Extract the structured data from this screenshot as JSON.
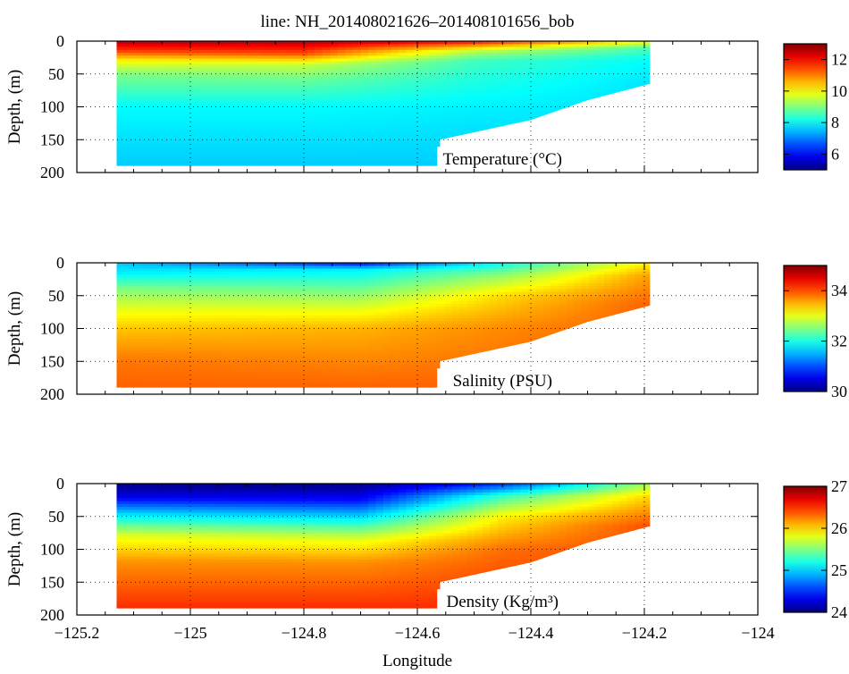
{
  "figure": {
    "title": "line: NH_201408021626–201408101656_bob",
    "xlabel": "Longitude"
  },
  "chart_data": [
    {
      "type": "heatmap",
      "panel": "temperature",
      "ylabel": "Depth, (m)",
      "annotation": "Temperature (°C)",
      "xlim": [
        -125.2,
        -124.0
      ],
      "ylim": [
        0,
        200
      ],
      "y_reversed": true,
      "xticks": [
        -125.2,
        -125.0,
        -124.8,
        -124.6,
        -124.4,
        -124.2,
        -124.0
      ],
      "xtick_labels": [
        "−125.2",
        "−125",
        "−124.8",
        "−124.6",
        "−124.4",
        "−124.2",
        "−124"
      ],
      "yticks": [
        0,
        50,
        100,
        150,
        200
      ],
      "grid": "dotted",
      "colormap": "jet",
      "colorbar": {
        "range": [
          5.0,
          13.0
        ],
        "ticks": [
          6,
          8,
          10,
          12
        ]
      },
      "section_bottom": [
        {
          "lon": -125.13,
          "depth": 190
        },
        {
          "lon": -124.56,
          "depth": 190
        },
        {
          "lon": -124.56,
          "depth": 150
        },
        {
          "lon": -124.4,
          "depth": 120
        },
        {
          "lon": -124.3,
          "depth": 90
        },
        {
          "lon": -124.19,
          "depth": 65
        }
      ],
      "profile": [
        {
          "lon": -125.13,
          "levels": [
            {
              "depth": 0,
              "value": 12.6
            },
            {
              "depth": 15,
              "value": 11.5
            },
            {
              "depth": 30,
              "value": 10.0
            },
            {
              "depth": 50,
              "value": 9.0
            },
            {
              "depth": 100,
              "value": 8.0
            },
            {
              "depth": 190,
              "value": 7.6
            }
          ]
        },
        {
          "lon": -124.8,
          "levels": [
            {
              "depth": 0,
              "value": 12.6
            },
            {
              "depth": 20,
              "value": 11.3
            },
            {
              "depth": 35,
              "value": 9.6
            },
            {
              "depth": 60,
              "value": 8.8
            },
            {
              "depth": 100,
              "value": 8.0
            },
            {
              "depth": 190,
              "value": 7.6
            }
          ]
        },
        {
          "lon": -124.5,
          "levels": [
            {
              "depth": 0,
              "value": 12.0
            },
            {
              "depth": 15,
              "value": 9.5
            },
            {
              "depth": 30,
              "value": 8.5
            },
            {
              "depth": 100,
              "value": 7.9
            },
            {
              "depth": 190,
              "value": 7.6
            }
          ]
        },
        {
          "lon": -124.19,
          "levels": [
            {
              "depth": 0,
              "value": 10.0
            },
            {
              "depth": 10,
              "value": 8.6
            },
            {
              "depth": 30,
              "value": 8.0
            },
            {
              "depth": 65,
              "value": 7.8
            }
          ]
        }
      ]
    },
    {
      "type": "heatmap",
      "panel": "salinity",
      "ylabel": "Depth, (m)",
      "annotation": "Salinity (PSU)",
      "xlim": [
        -125.2,
        -124.0
      ],
      "ylim": [
        0,
        200
      ],
      "y_reversed": true,
      "xticks": [
        -125.2,
        -125.0,
        -124.8,
        -124.6,
        -124.4,
        -124.2,
        -124.0
      ],
      "xtick_labels": [
        "−125.2",
        "−125",
        "−124.8",
        "−124.6",
        "−124.4",
        "−124.2",
        "−124"
      ],
      "yticks": [
        0,
        50,
        100,
        150,
        200
      ],
      "grid": "dotted",
      "colormap": "jet",
      "colorbar": {
        "range": [
          30.0,
          35.0
        ],
        "ticks": [
          30,
          32,
          34
        ]
      },
      "section_bottom": [
        {
          "lon": -125.13,
          "depth": 190
        },
        {
          "lon": -124.56,
          "depth": 190
        },
        {
          "lon": -124.56,
          "depth": 150
        },
        {
          "lon": -124.4,
          "depth": 120
        },
        {
          "lon": -124.3,
          "depth": 90
        },
        {
          "lon": -124.19,
          "depth": 65
        }
      ],
      "profile": [
        {
          "lon": -125.13,
          "levels": [
            {
              "depth": 0,
              "value": 31.6
            },
            {
              "depth": 15,
              "value": 31.8
            },
            {
              "depth": 40,
              "value": 32.5
            },
            {
              "depth": 70,
              "value": 33.0
            },
            {
              "depth": 100,
              "value": 33.4
            },
            {
              "depth": 150,
              "value": 33.8
            },
            {
              "depth": 190,
              "value": 33.9
            }
          ]
        },
        {
          "lon": -124.7,
          "levels": [
            {
              "depth": 0,
              "value": 30.6
            },
            {
              "depth": 10,
              "value": 31.8
            },
            {
              "depth": 40,
              "value": 32.4
            },
            {
              "depth": 70,
              "value": 33.0
            },
            {
              "depth": 100,
              "value": 33.5
            },
            {
              "depth": 190,
              "value": 33.9
            }
          ]
        },
        {
          "lon": -124.45,
          "levels": [
            {
              "depth": 0,
              "value": 31.9
            },
            {
              "depth": 20,
              "value": 32.6
            },
            {
              "depth": 50,
              "value": 33.3
            },
            {
              "depth": 100,
              "value": 33.7
            },
            {
              "depth": 190,
              "value": 33.9
            }
          ]
        },
        {
          "lon": -124.19,
          "levels": [
            {
              "depth": 0,
              "value": 33.2
            },
            {
              "depth": 20,
              "value": 33.6
            },
            {
              "depth": 65,
              "value": 33.9
            }
          ]
        }
      ]
    },
    {
      "type": "heatmap",
      "panel": "density",
      "ylabel": "Depth, (m)",
      "annotation": "Density (Kg/m³)",
      "xlim": [
        -125.2,
        -124.0
      ],
      "ylim": [
        0,
        200
      ],
      "y_reversed": true,
      "xticks": [
        -125.2,
        -125.0,
        -124.8,
        -124.6,
        -124.4,
        -124.2,
        -124.0
      ],
      "xtick_labels": [
        "−125.2",
        "−125",
        "−124.8",
        "−124.6",
        "−124.4",
        "−124.2",
        "−124"
      ],
      "yticks": [
        0,
        50,
        100,
        150,
        200
      ],
      "grid": "dotted",
      "colormap": "jet",
      "colorbar": {
        "range": [
          24.0,
          27.0
        ],
        "ticks": [
          24,
          25,
          26,
          27
        ]
      },
      "section_bottom": [
        {
          "lon": -125.13,
          "depth": 190
        },
        {
          "lon": -124.56,
          "depth": 190
        },
        {
          "lon": -124.56,
          "depth": 150
        },
        {
          "lon": -124.4,
          "depth": 120
        },
        {
          "lon": -124.3,
          "depth": 90
        },
        {
          "lon": -124.19,
          "depth": 65
        }
      ],
      "profile": [
        {
          "lon": -125.13,
          "levels": [
            {
              "depth": 0,
              "value": 24.0
            },
            {
              "depth": 20,
              "value": 24.3
            },
            {
              "depth": 45,
              "value": 25.0
            },
            {
              "depth": 80,
              "value": 25.8
            },
            {
              "depth": 120,
              "value": 26.2
            },
            {
              "depth": 190,
              "value": 26.5
            }
          ]
        },
        {
          "lon": -124.7,
          "levels": [
            {
              "depth": 0,
              "value": 24.0
            },
            {
              "depth": 25,
              "value": 24.4
            },
            {
              "depth": 50,
              "value": 25.0
            },
            {
              "depth": 85,
              "value": 25.8
            },
            {
              "depth": 120,
              "value": 26.2
            },
            {
              "depth": 190,
              "value": 26.5
            }
          ]
        },
        {
          "lon": -124.45,
          "levels": [
            {
              "depth": 0,
              "value": 24.5
            },
            {
              "depth": 20,
              "value": 25.3
            },
            {
              "depth": 50,
              "value": 25.9
            },
            {
              "depth": 100,
              "value": 26.3
            },
            {
              "depth": 190,
              "value": 26.5
            }
          ]
        },
        {
          "lon": -124.19,
          "levels": [
            {
              "depth": 0,
              "value": 25.6
            },
            {
              "depth": 20,
              "value": 26.0
            },
            {
              "depth": 65,
              "value": 26.4
            }
          ]
        }
      ]
    }
  ]
}
